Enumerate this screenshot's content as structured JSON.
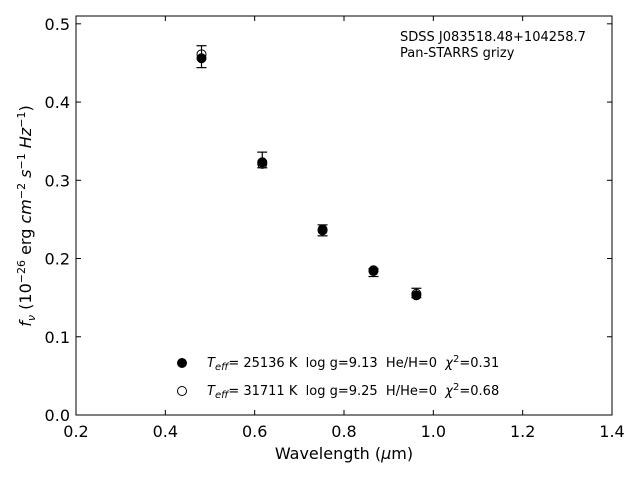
{
  "chart_data": {
    "type": "scatter",
    "title": "",
    "annotations": [
      "SDSS J083518.48+104258.7",
      "Pan-STARRS grizy"
    ],
    "xlabel": {
      "main": "Wavelength (",
      "mu": "μ",
      "unit": "m)"
    },
    "ylabel": {
      "f": "f",
      "nu": "ν",
      "a": " (10",
      "e1": "−26",
      "b": " erg ",
      "cm": "cm",
      "e2": "−2",
      "s": " s",
      "e3": "−1",
      "hz": " Hz",
      "e4": "−1",
      "c": ")"
    },
    "xlim": [
      0.2,
      1.4
    ],
    "ylim": [
      0.0,
      0.51
    ],
    "xticks": [
      "0.2",
      "0.4",
      "0.6",
      "0.8",
      "1.0",
      "1.2",
      "1.4"
    ],
    "yticks": [
      "0.0",
      "0.1",
      "0.2",
      "0.3",
      "0.4",
      "0.5"
    ],
    "grid": false,
    "legend_position": "lower-center",
    "observed": {
      "x": [
        0.481,
        0.617,
        0.752,
        0.866,
        0.962
      ],
      "y": [
        0.458,
        0.326,
        0.236,
        0.182,
        0.156
      ],
      "yerr": [
        0.014,
        0.01,
        0.007,
        0.005,
        0.006
      ]
    },
    "series": [
      {
        "marker": "filled",
        "values": [
          0.456,
          0.323,
          0.236,
          0.185,
          0.153
        ],
        "legend": {
          "T": "T",
          "eff": "eff",
          "text": "= 25136 K  log g=9.13  He/H=0  ",
          "chi": "χ",
          "sq": "2",
          "fit": "=0.31"
        }
      },
      {
        "marker": "open",
        "values": [
          0.461,
          0.321,
          0.237,
          0.184,
          0.155
        ],
        "legend": {
          "T": "T",
          "eff": "eff",
          "text": "= 31711 K  log g=9.25  H/He=0  ",
          "chi": "χ",
          "sq": "2",
          "fit": "=0.68"
        }
      }
    ]
  }
}
